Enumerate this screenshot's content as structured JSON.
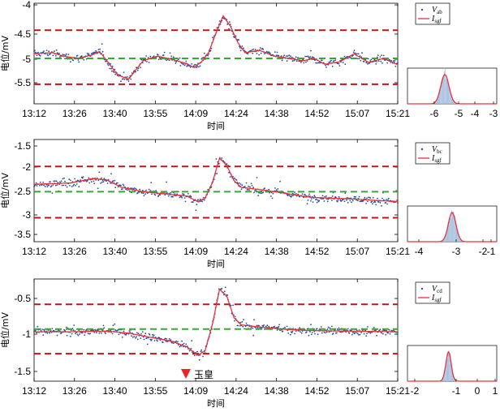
{
  "colors": {
    "scatter": "#2b4c9a",
    "fit": "#e8333b",
    "band": "#c0141c",
    "median": "#33aa33",
    "hist": "#a8c2e0",
    "marker": "#ee2222"
  },
  "chart_data": [
    {
      "type": "scatter",
      "xlabel": "时间",
      "ylabel": "电位/mV",
      "x_ticks": [
        "13:12",
        "13:26",
        "13:40",
        "13:55",
        "14:09",
        "14:24",
        "14:38",
        "14:52",
        "15:07",
        "15:21"
      ],
      "y_ticks": [
        "-4",
        "-4.5",
        "-5",
        "-5.5"
      ],
      "ylim": [
        -5.65,
        -3.9
      ],
      "legend": {
        "scatter": "V",
        "scatter_sub": "ab",
        "fit": "I",
        "fit_sub": "sgf"
      },
      "upper_band": -4.37,
      "median": -4.86,
      "lower_band": -5.31,
      "fit_series": [
        [
          0,
          -4.78
        ],
        [
          0.05,
          -4.76
        ],
        [
          0.08,
          -4.82
        ],
        [
          0.12,
          -4.86
        ],
        [
          0.16,
          -4.8
        ],
        [
          0.18,
          -4.74
        ],
        [
          0.2,
          -4.9
        ],
        [
          0.23,
          -5.15
        ],
        [
          0.26,
          -5.22
        ],
        [
          0.3,
          -4.9
        ],
        [
          0.34,
          -4.82
        ],
        [
          0.38,
          -4.88
        ],
        [
          0.42,
          -4.95
        ],
        [
          0.44,
          -5.02
        ],
        [
          0.46,
          -4.92
        ],
        [
          0.48,
          -4.76
        ],
        [
          0.5,
          -4.42
        ],
        [
          0.52,
          -4.12
        ],
        [
          0.54,
          -4.3
        ],
        [
          0.56,
          -4.58
        ],
        [
          0.58,
          -4.76
        ],
        [
          0.62,
          -4.72
        ],
        [
          0.66,
          -4.82
        ],
        [
          0.7,
          -4.86
        ],
        [
          0.74,
          -4.9
        ],
        [
          0.77,
          -4.86
        ],
        [
          0.8,
          -4.96
        ],
        [
          0.84,
          -4.92
        ],
        [
          0.88,
          -4.78
        ],
        [
          0.92,
          -4.93
        ],
        [
          0.96,
          -4.86
        ],
        [
          1,
          -4.97
        ]
      ],
      "hist": {
        "x_ticks": [
          "-6",
          "-5",
          "-4",
          "-3"
        ],
        "xlim": [
          -6.5,
          -2.8
        ],
        "mean": -4.95,
        "sd": 0.17
      }
    },
    {
      "type": "scatter",
      "xlabel": "时间",
      "ylabel": "电位/mV",
      "x_ticks": [
        "13:12",
        "13:26",
        "13:40",
        "13:55",
        "14:09",
        "14:24",
        "14:38",
        "14:52",
        "15:07",
        "15:21"
      ],
      "y_ticks": [
        "-1.5",
        "-2",
        "-2.5",
        "-3",
        "-3.5"
      ],
      "ylim": [
        -3.7,
        -1.35
      ],
      "legend": {
        "scatter": "V",
        "scatter_sub": "bc",
        "fit": "I",
        "fit_sub": "sgf"
      },
      "upper_band": -1.97,
      "median": -2.55,
      "lower_band": -3.15,
      "fit_series": [
        [
          0,
          -2.38
        ],
        [
          0.1,
          -2.35
        ],
        [
          0.16,
          -2.25
        ],
        [
          0.2,
          -2.28
        ],
        [
          0.24,
          -2.45
        ],
        [
          0.3,
          -2.55
        ],
        [
          0.36,
          -2.6
        ],
        [
          0.42,
          -2.65
        ],
        [
          0.45,
          -2.78
        ],
        [
          0.47,
          -2.7
        ],
        [
          0.49,
          -2.35
        ],
        [
          0.51,
          -1.78
        ],
        [
          0.53,
          -1.95
        ],
        [
          0.55,
          -2.3
        ],
        [
          0.57,
          -2.45
        ],
        [
          0.62,
          -2.5
        ],
        [
          0.66,
          -2.55
        ],
        [
          0.7,
          -2.6
        ],
        [
          0.76,
          -2.68
        ],
        [
          0.82,
          -2.7
        ],
        [
          0.88,
          -2.72
        ],
        [
          0.94,
          -2.75
        ],
        [
          1,
          -2.78
        ]
      ],
      "hist": {
        "x_ticks": [
          "-4",
          "-3",
          "-2",
          "-1"
        ],
        "xlim": [
          -4.6,
          -0.6
        ],
        "mean": -2.6,
        "sd": 0.17
      }
    },
    {
      "type": "scatter",
      "xlabel": "时间",
      "ylabel": "电位/mV",
      "x_ticks": [
        "13:12",
        "13:26",
        "13:40",
        "13:55",
        "14:09",
        "14:24",
        "14:38",
        "14:52",
        "15:07",
        "15:21"
      ],
      "y_ticks": [
        "-0.5",
        "-1",
        "-1.5"
      ],
      "ylim": [
        -1.72,
        -0.23
      ],
      "legend": {
        "scatter": "V",
        "scatter_sub": "cd",
        "fit": "I",
        "fit_sub": "sgf"
      },
      "upper_band": -0.6,
      "median": -0.96,
      "lower_band": -1.32,
      "fit_series": [
        [
          0,
          -1.0
        ],
        [
          0.1,
          -1.0
        ],
        [
          0.2,
          -0.99
        ],
        [
          0.26,
          -1.02
        ],
        [
          0.32,
          -1.08
        ],
        [
          0.38,
          -1.14
        ],
        [
          0.42,
          -1.22
        ],
        [
          0.45,
          -1.34
        ],
        [
          0.47,
          -1.28
        ],
        [
          0.49,
          -0.9
        ],
        [
          0.51,
          -0.38
        ],
        [
          0.53,
          -0.48
        ],
        [
          0.55,
          -0.8
        ],
        [
          0.57,
          -0.9
        ],
        [
          0.62,
          -0.93
        ],
        [
          0.68,
          -0.96
        ],
        [
          0.75,
          -0.98
        ],
        [
          0.85,
          -0.99
        ],
        [
          1,
          -1.0
        ]
      ],
      "hist": {
        "x_ticks": [
          "-2",
          "-1",
          "0",
          "1"
        ],
        "xlim": [
          -2.7,
          1.0
        ],
        "mean": -1.0,
        "sd": 0.11
      },
      "annotation": "玉皇"
    }
  ]
}
